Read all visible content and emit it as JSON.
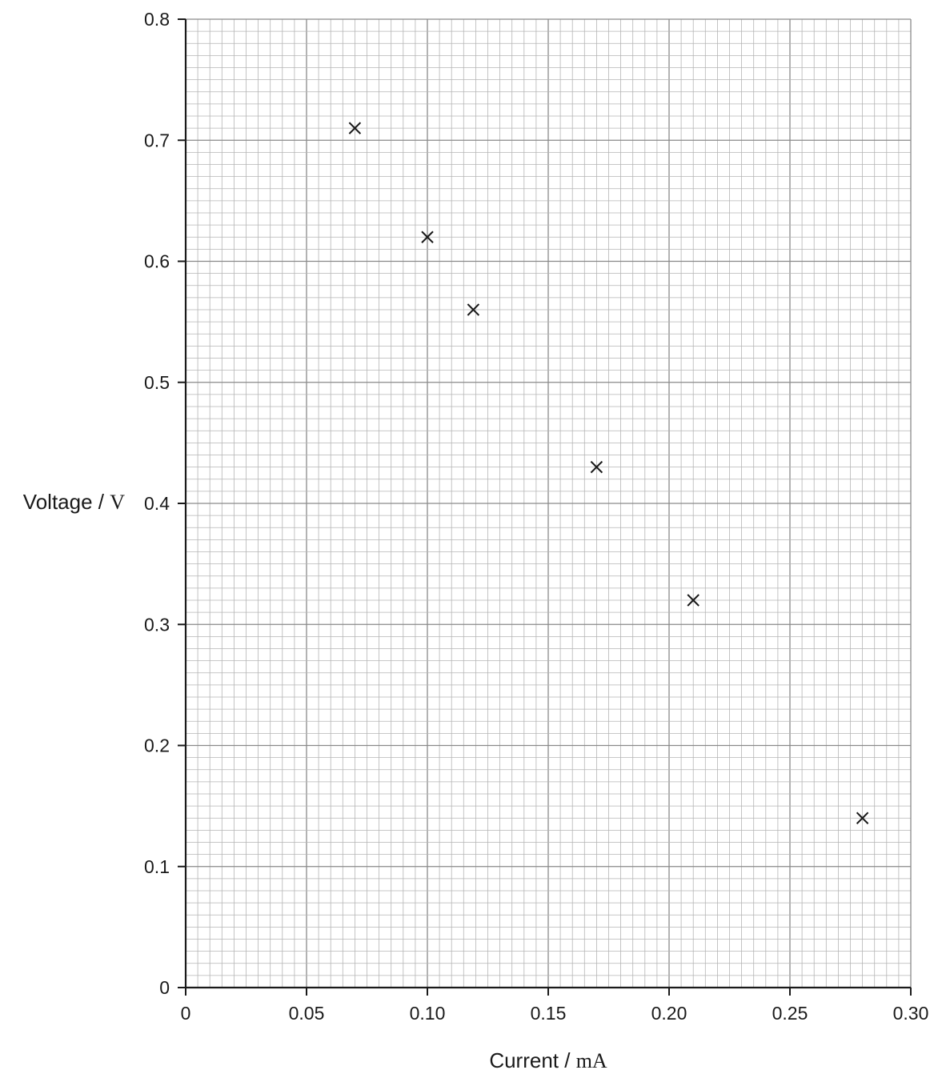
{
  "chart_data": {
    "type": "scatter",
    "title": "",
    "xlabel": {
      "quantity": "Current",
      "separator": " / ",
      "unit": "mA"
    },
    "ylabel": {
      "quantity": "Voltage",
      "separator": " / ",
      "unit": "V"
    },
    "xlim": [
      0,
      0.3
    ],
    "ylim": [
      0,
      0.8
    ],
    "x_ticks": [
      "0",
      "0.05",
      "0.10",
      "0.15",
      "0.20",
      "0.25",
      "0.30"
    ],
    "y_ticks": [
      "0",
      "0.1",
      "0.2",
      "0.3",
      "0.4",
      "0.5",
      "0.6",
      "0.7",
      "0.8"
    ],
    "grid": true,
    "marker": "x",
    "points": [
      {
        "x": 0.07,
        "y": 0.71
      },
      {
        "x": 0.1,
        "y": 0.62
      },
      {
        "x": 0.119,
        "y": 0.56
      },
      {
        "x": 0.17,
        "y": 0.43
      },
      {
        "x": 0.21,
        "y": 0.32
      },
      {
        "x": 0.28,
        "y": 0.14
      }
    ],
    "colors": {
      "grid_major": "#8a8a8a",
      "grid_minor": "#b5b5b5",
      "axis": "#1a1a1a",
      "marker": "#1a1a1a"
    }
  }
}
